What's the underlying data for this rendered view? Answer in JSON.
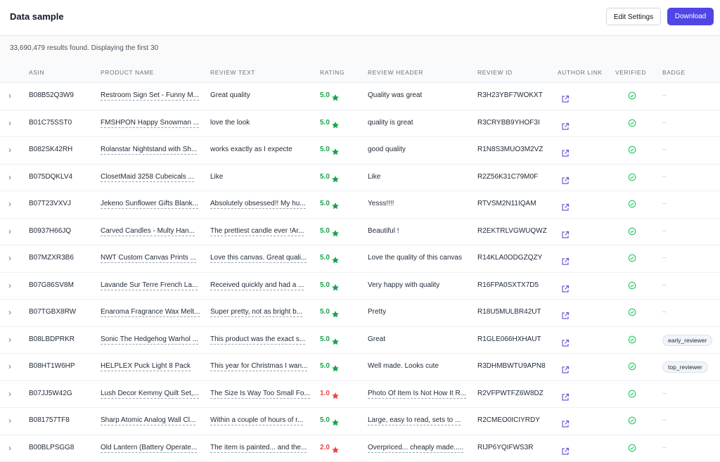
{
  "header": {
    "title": "Data sample",
    "buttons": [
      "Edit Settings",
      "Download"
    ]
  },
  "summary": "33,690,479 results found. Displaying the first 30",
  "table": {
    "columns": [
      "ASIN",
      "PRODUCT NAME",
      "REVIEW TEXT",
      "RATING",
      "REVIEW HEADER",
      "REVIEW ID",
      "AUTHOR LINK",
      "VERIFIED",
      "BADGE"
    ],
    "rows": [
      {
        "asin": "B08B52Q3W9",
        "product_name": "Restroom Sign Set - Funny M...",
        "review_text": "Great quality",
        "rating": "5.0",
        "review_header": "Quality was great",
        "review_id": "R3H23YBF7WOKXT",
        "badge": "–"
      },
      {
        "asin": "B01C75SST0",
        "product_name": "FMSHPON Happy Snowman ...",
        "review_text": "love the look",
        "rating": "5.0",
        "review_header": "quality is great",
        "review_id": "R3CRYBB9YHOF3I",
        "badge": "–"
      },
      {
        "asin": "B082SK42RH",
        "product_name": "Rolanstar Nightstand with Sh...",
        "review_text": "works exactly as I expecte",
        "rating": "5.0",
        "review_header": "good quality",
        "review_id": "R1N8S3MUO3M2VZ",
        "badge": "–"
      },
      {
        "asin": "B075DQKLV4",
        "product_name": "ClosetMaid 3258 Cubeicals ...",
        "review_text": "Like",
        "rating": "5.0",
        "review_header": "Like",
        "review_id": "R2Z56K31C79M0F",
        "badge": "–"
      },
      {
        "asin": "B07T23VXVJ",
        "product_name": "Jekeno Sunflower Gifts Blank...",
        "review_text": "Absolutely obsessed!! My hu...",
        "rating": "5.0",
        "review_header": "Yesss!!!!",
        "review_id": "RTVSM2N11IQAM",
        "badge": "–"
      },
      {
        "asin": "B0937H66JQ",
        "product_name": "Carved Candles - Multy Han...",
        "review_text": "The prettiest candle ever !Ar...",
        "rating": "5.0",
        "review_header": "Beautiful !",
        "review_id": "R2EKTRLVGWUQWZ",
        "badge": "–"
      },
      {
        "asin": "B07MZXR3B6",
        "product_name": "NWT Custom Canvas Prints ...",
        "review_text": "Love this canvas. Great quali...",
        "rating": "5.0",
        "review_header": "Love the quality of this canvas",
        "review_id": "R14KLA0ODGZQZY",
        "badge": "–"
      },
      {
        "asin": "B07G86SV8M",
        "product_name": "Lavande Sur Terre French La...",
        "review_text": "Received quickly and had a ...",
        "rating": "5.0",
        "review_header": "Very happy with quality",
        "review_id": "R16FPA0SXTX7D5",
        "badge": "–"
      },
      {
        "asin": "B07TGBX8RW",
        "product_name": "Enaroma Fragrance Wax Melt...",
        "review_text": "Super pretty, not as bright b...",
        "rating": "5.0",
        "review_header": "Pretty",
        "review_id": "R18U5MULBR42UT",
        "badge": "–"
      },
      {
        "asin": "B08LBDPRKR",
        "product_name": "Sonic The Hedgehog Warhol ...",
        "review_text": "This product was the exact s...",
        "rating": "5.0",
        "review_header": "Great",
        "review_id": "R1GLE066HXHAUT",
        "badge": "early_reviewer"
      },
      {
        "asin": "B08HT1W6HP",
        "product_name": "HELPLEX Puck Light 8 Pack",
        "review_text": "This year for Christmas I wan...",
        "rating": "5.0",
        "review_header": "Well made. Looks cute",
        "review_id": "R3DHMBWTU9APN8",
        "badge": "top_reviewer"
      },
      {
        "asin": "B07JJ5W42G",
        "product_name": "Lush Decor Kemmy Quilt Set,...",
        "review_text": "The Size Is Way Too Small Fo...",
        "rating": "1.0",
        "review_header": "Photo Of Item Is Not How It R...",
        "review_id": "R2VFPWTFZ6W8DZ",
        "badge": "–"
      },
      {
        "asin": "B081757TF8",
        "product_name": "Sharp Atomic Analog Wall Cl...",
        "review_text": "Within a couple of hours of r...",
        "rating": "5.0",
        "review_header": "Large, easy to read, sets to ...",
        "review_id": "R2CMEO0ICIYRDY",
        "badge": "–"
      },
      {
        "asin": "B00BLPSGG8",
        "product_name": "Old Lantern (Battery Operate...",
        "review_text": "The item is painted... and the...",
        "rating": "2.0",
        "review_header": "Overpriced... cheaply made.....",
        "review_id": "RIJP6YQIFWS3R",
        "badge": "–"
      }
    ]
  }
}
